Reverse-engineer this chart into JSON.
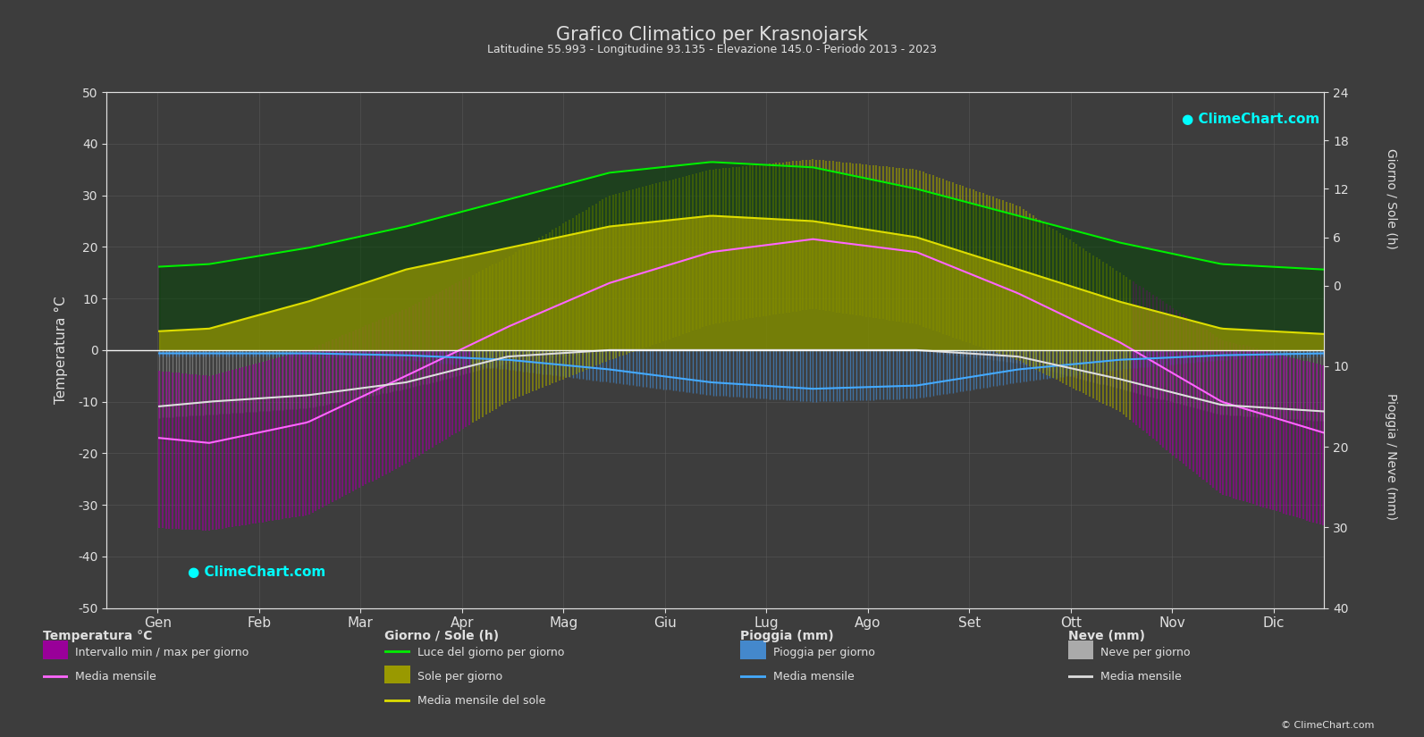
{
  "title": "Grafico Climatico per Krasnojarsk",
  "subtitle": "Latitudine 55.993 - Longitudine 93.135 - Elevazione 145.0 - Periodo 2013 - 2023",
  "months": [
    "Gen",
    "Feb",
    "Mar",
    "Apr",
    "Mag",
    "Giu",
    "Lug",
    "Ago",
    "Set",
    "Ott",
    "Nov",
    "Dic"
  ],
  "temp_max_mean": [
    -13.5,
    -9.0,
    0.0,
    10.0,
    19.0,
    25.0,
    27.5,
    25.0,
    17.0,
    6.0,
    -5.0,
    -11.5
  ],
  "temp_min_mean": [
    -22.0,
    -19.0,
    -10.0,
    -1.0,
    7.0,
    13.0,
    15.5,
    13.0,
    5.0,
    -3.0,
    -15.0,
    -20.0
  ],
  "temp_avg_mean": [
    -18.0,
    -14.0,
    -5.0,
    4.5,
    13.0,
    19.0,
    21.5,
    19.0,
    11.0,
    1.5,
    -10.0,
    -16.0
  ],
  "temp_max_daily_range": [
    -5.0,
    0.0,
    8.0,
    18.0,
    30.0,
    35.0,
    37.0,
    35.0,
    28.0,
    15.0,
    2.0,
    -3.0
  ],
  "temp_min_daily_range": [
    -35.0,
    -32.0,
    -22.0,
    -10.0,
    -2.0,
    5.0,
    8.0,
    5.0,
    -2.0,
    -12.0,
    -28.0,
    -34.0
  ],
  "daylight_hours": [
    8.0,
    9.5,
    11.5,
    14.0,
    16.5,
    17.5,
    17.0,
    15.0,
    12.5,
    10.0,
    8.0,
    7.5
  ],
  "sunshine_hours_daily": [
    2.0,
    4.5,
    7.5,
    9.5,
    11.5,
    12.5,
    12.0,
    10.5,
    7.5,
    4.5,
    2.0,
    1.5
  ],
  "sunshine_mean": [
    2.0,
    4.5,
    7.5,
    9.5,
    11.5,
    12.5,
    12.0,
    10.5,
    7.5,
    4.5,
    2.0,
    1.5
  ],
  "rain_daily_max": [
    1.0,
    1.0,
    1.5,
    3.0,
    5.0,
    7.0,
    8.0,
    7.5,
    5.0,
    3.0,
    1.5,
    1.0
  ],
  "rain_mean": [
    0.5,
    0.5,
    0.8,
    1.5,
    3.0,
    5.0,
    6.0,
    5.5,
    3.0,
    1.5,
    0.8,
    0.5
  ],
  "snow_daily_max": [
    10.0,
    9.0,
    6.0,
    2.0,
    0.0,
    0.0,
    0.0,
    0.0,
    2.0,
    6.0,
    10.0,
    11.0
  ],
  "snow_mean": [
    8.0,
    7.0,
    5.0,
    1.0,
    0.0,
    0.0,
    0.0,
    0.0,
    1.0,
    4.5,
    8.5,
    9.5
  ],
  "bg_color": "#3d3d3d",
  "text_color": "#e0e0e0",
  "grid_color": "#606060",
  "temp_warm_color": "#999900",
  "temp_cold_color": "#990099",
  "temp_avg_line_color": "#ff66ff",
  "daylight_line_color": "#00ee00",
  "daylight_fill_color": "#004400",
  "sunshine_fill_color": "#999900",
  "sunshine_line_color": "#dddd00",
  "rain_bar_color": "#4488cc",
  "snow_bar_color": "#aaaaaa",
  "rain_mean_line_color": "#44aaff",
  "snow_mean_line_color": "#dddddd",
  "ylim_left": [
    -50,
    50
  ],
  "ylim_right": [
    -40,
    24
  ],
  "ylabel_left": "Temperatura °C",
  "ylabel_right_top": "Giorno / Sole (h)",
  "ylabel_right_bottom": "Pioggia / Neve (mm)"
}
